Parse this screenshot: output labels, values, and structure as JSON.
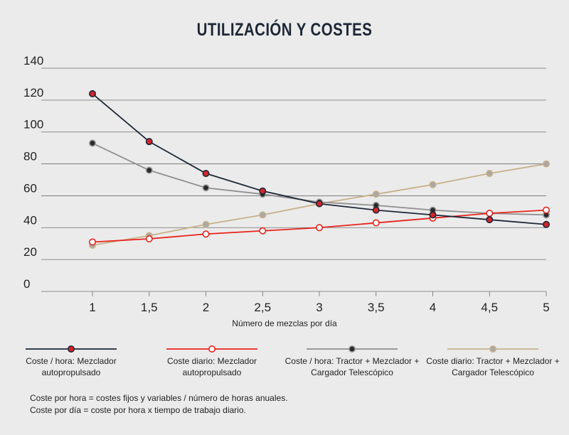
{
  "chart_data": {
    "type": "line",
    "title": "UTILIZACIÓN Y COSTES",
    "xlabel": "Número de mezclas por día",
    "ylabel": "",
    "ylim": [
      0,
      140
    ],
    "yticks": [
      "0",
      "20",
      "40",
      "60",
      "80",
      "100",
      "120",
      "140"
    ],
    "x": [
      1,
      1.5,
      2,
      2.5,
      3,
      3.5,
      4,
      4.5,
      5
    ],
    "xtick_labels": [
      "1",
      "1,5",
      "2",
      "2,5",
      "3",
      "3,5",
      "4",
      "4,5",
      "5"
    ],
    "grid": "horizontal",
    "legend_position": "bottom",
    "series": [
      {
        "name": "Coste / hora: Mezclador autopropulsado",
        "legend_lines": [
          "Coste / hora: Mezclador",
          "autopropulsado"
        ],
        "color": "#1e2736",
        "marker": "filled-red",
        "values": [
          124,
          94,
          74,
          63,
          55,
          51,
          48,
          45,
          42
        ]
      },
      {
        "name": "Coste diario: Mezclador autopropulsado",
        "legend_lines": [
          "Coste diario: Mezclador",
          "autopropulsado"
        ],
        "color": "#e8231c",
        "marker": "hollow",
        "values": [
          31,
          33,
          36,
          38,
          40,
          43,
          46,
          49,
          51
        ]
      },
      {
        "name": "Coste / hora: Tractor + Mezclador + Cargador Telescópico",
        "legend_lines": [
          "Coste / hora: Tractor + Mezclador +",
          "Cargador Telescópico"
        ],
        "color": "#8f8f8f",
        "marker": "filled-dark",
        "values": [
          93,
          76,
          65,
          61,
          56,
          54,
          51,
          49,
          48
        ]
      },
      {
        "name": "Coste diario: Tractor + Mezclador + Cargador Telescópico",
        "legend_lines": [
          "Coste diario: Tractor + Mezclador +",
          "Cargador Telescópico"
        ],
        "color": "#c8b08a",
        "marker": "filled-tan",
        "values": [
          29,
          35,
          42,
          48,
          55,
          61,
          67,
          74,
          80
        ]
      }
    ]
  },
  "notes": [
    "Coste por hora = costes fijos y variables / número de horas anuales.",
    "Coste por día = coste por hora x tiempo de trabajo diario."
  ]
}
